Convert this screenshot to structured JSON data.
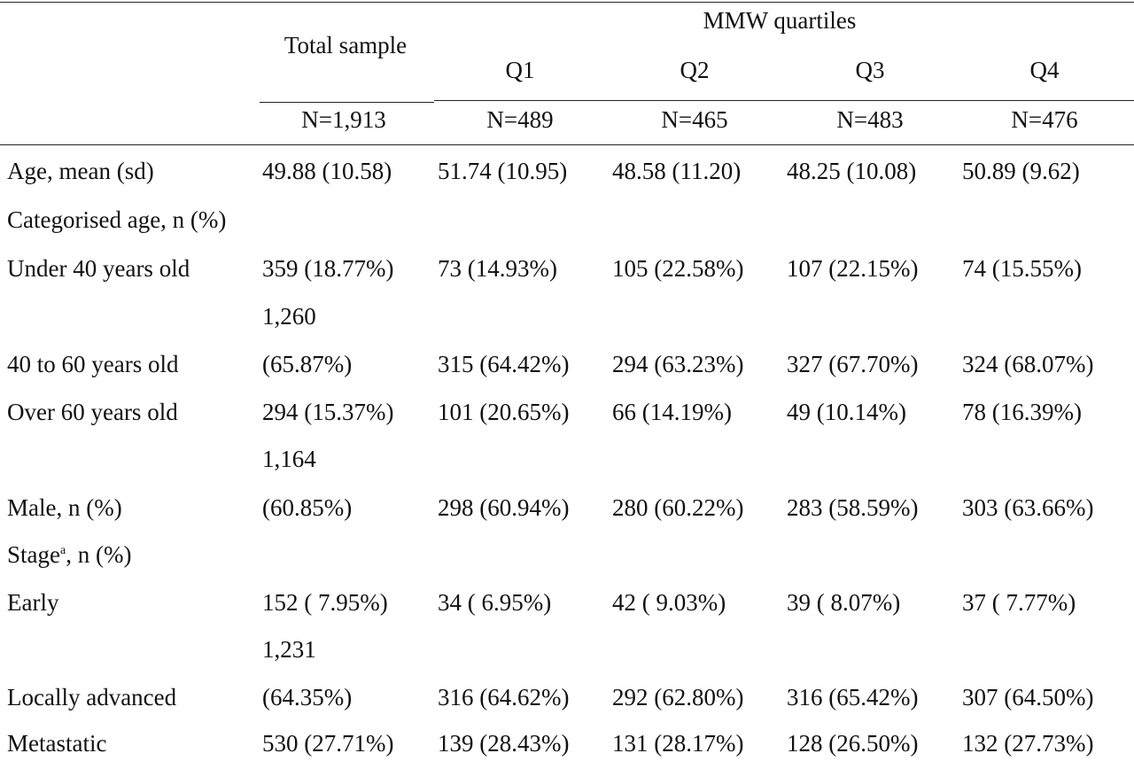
{
  "header": {
    "group_label": "MMW quartiles",
    "total_label": "Total sample",
    "quartiles": [
      "Q1",
      "Q2",
      "Q3",
      "Q4"
    ],
    "n_values": [
      "N=1,913",
      "N=489",
      "N=465",
      "N=483",
      "N=476"
    ]
  },
  "rows": [
    {
      "label": "Age, mean (sd)",
      "total": "49.88 (10.58)",
      "q1": "51.74 (10.95)",
      "q2": "48.58 (11.20)",
      "q3": "48.25 (10.08)",
      "q4": "50.89 (9.62)"
    },
    {
      "label": "Categorised age, n (%)"
    },
    {
      "label": "Under 40 years old",
      "total": "359 (18.77%)",
      "q1": "73 (14.93%)",
      "q2": "105 (22.58%)",
      "q3": "107 (22.15%)",
      "q4": "74 (15.55%)"
    },
    {
      "total_wrap": "1,260"
    },
    {
      "label": "40 to 60 years old",
      "total": "(65.87%)",
      "q1": "315 (64.42%)",
      "q2": "294 (63.23%)",
      "q3": "327 (67.70%)",
      "q4": "324 (68.07%)"
    },
    {
      "label": "Over 60 years old",
      "total": "294 (15.37%)",
      "q1": "101 (20.65%)",
      "q2": "66 (14.19%)",
      "q3": "49 (10.14%)",
      "q4": "78 (16.39%)"
    },
    {
      "total_wrap": "1,164"
    },
    {
      "label": "Male, n (%)",
      "total": "(60.85%)",
      "q1": "298 (60.94%)",
      "q2": "280 (60.22%)",
      "q3": "283 (58.59%)",
      "q4": "303 (63.66%)"
    },
    {
      "label": "Stage",
      "label_sup": "a",
      "label_rest": ", n (%)"
    },
    {
      "label": "Early",
      "total": "152 ( 7.95%)",
      "q1": "34 ( 6.95%)",
      "q2": "42 ( 9.03%)",
      "q3": "39 ( 8.07%)",
      "q4": "37 ( 7.77%)"
    },
    {
      "total_wrap": "1,231"
    },
    {
      "label": "Locally advanced",
      "total": "(64.35%)",
      "q1": "316 (64.62%)",
      "q2": "292 (62.80%)",
      "q3": "316 (65.42%)",
      "q4": "307 (64.50%)"
    },
    {
      "label": "Metastatic",
      "total": "530 (27.71%)",
      "q1": "139 (28.43%)",
      "q2": "131 (28.17%)",
      "q3": "128 (26.50%)",
      "q4": "132 (27.73%)"
    }
  ]
}
